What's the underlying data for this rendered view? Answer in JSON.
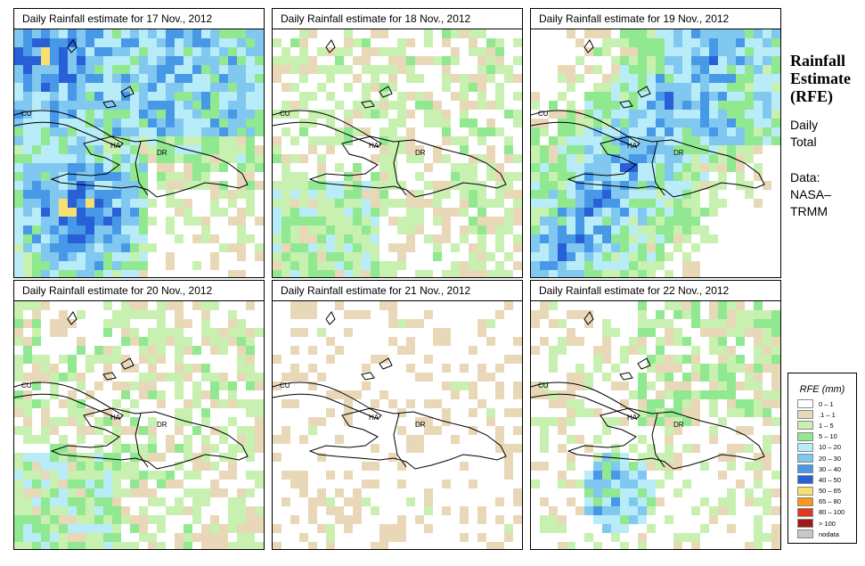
{
  "panels": [
    {
      "title": "Daily Rainfall estimate for  17 Nov., 2012",
      "intensity": "heavy"
    },
    {
      "title": "Daily Rainfall estimate for  18 Nov., 2012",
      "intensity": "light"
    },
    {
      "title": "Daily Rainfall estimate for  19 Nov., 2012",
      "intensity": "moderate"
    },
    {
      "title": "Daily Rainfall estimate for  20 Nov., 2012",
      "intensity": "light"
    },
    {
      "title": "Daily Rainfall estimate for  21 Nov., 2012",
      "intensity": "minimal"
    },
    {
      "title": "Daily Rainfall estimate for  22 Nov., 2012",
      "intensity": "light-south"
    }
  ],
  "map_labels": {
    "cuba": "CU",
    "haiti": "HA",
    "dominican_republic": "DR"
  },
  "sidebar": {
    "title_line1": "Rainfall",
    "title_line2": "Estimate",
    "title_line3": "(RFE)",
    "period_line1": "Daily",
    "period_line2": "Total",
    "source_line1": "Data:",
    "source_line2": "NASA–",
    "source_line3": "TRMM"
  },
  "legend": {
    "title": "RFE (mm)",
    "classes": [
      {
        "label": "0 – 1",
        "color": "#ffffff"
      },
      {
        "label": ".1 – 1",
        "color": "#e8d8b8"
      },
      {
        "label": "1 – 5",
        "color": "#c8f0b0"
      },
      {
        "label": "5 – 10",
        "color": "#90e890"
      },
      {
        "label": "10 – 20",
        "color": "#b8ecf8"
      },
      {
        "label": "20 – 30",
        "color": "#80c8f0"
      },
      {
        "label": "30 – 40",
        "color": "#4898e8"
      },
      {
        "label": "40 – 50",
        "color": "#2860d8"
      },
      {
        "label": "50 – 65",
        "color": "#f8e070"
      },
      {
        "label": "65 – 80",
        "color": "#f89818"
      },
      {
        "label": "80 – 100",
        "color": "#e03818"
      },
      {
        "label": "> 100",
        "color": "#a01818"
      },
      {
        "label": "nodata",
        "color": "#c8c8c8"
      }
    ]
  }
}
